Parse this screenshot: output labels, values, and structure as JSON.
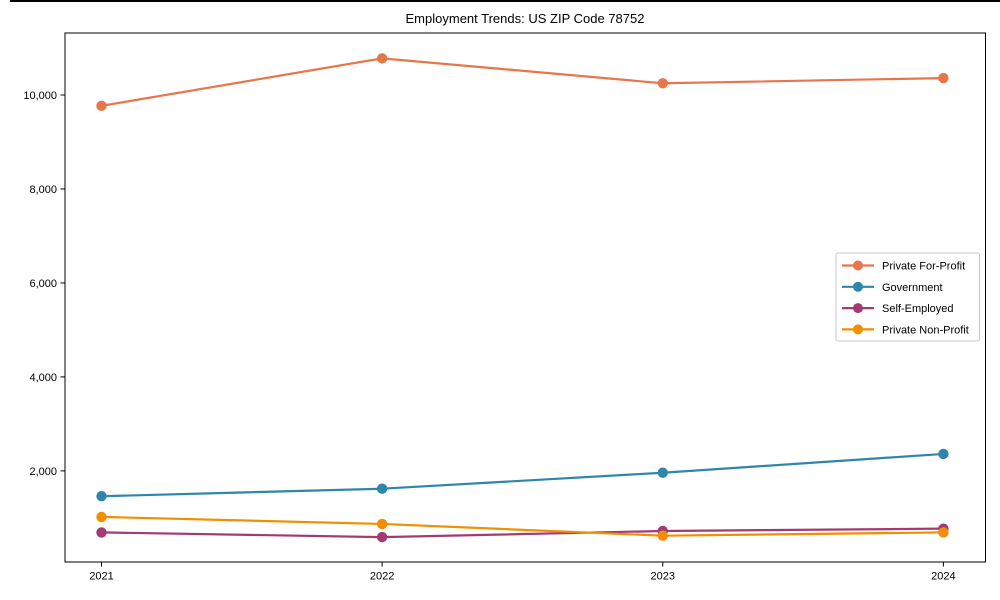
{
  "chart_data": {
    "type": "line",
    "title": "Employment Trends: US ZIP Code 78752",
    "x": [
      2021,
      2022,
      2023,
      2024
    ],
    "x_tick_labels": [
      "2021",
      "2022",
      "2023",
      "2024"
    ],
    "y_ticks": [
      2000,
      4000,
      6000,
      8000,
      10000
    ],
    "y_tick_labels": [
      "2,000",
      "4,000",
      "6,000",
      "8,000",
      "10,000"
    ],
    "xlim": [
      2020.87,
      2024.15
    ],
    "ylim": [
      60,
      11320
    ],
    "grid": false,
    "legend_position": "center-right",
    "series": [
      {
        "name": "Private For-Profit",
        "color": "#E8764B",
        "values": [
          9770,
          10780,
          10250,
          10360
        ]
      },
      {
        "name": "Government",
        "color": "#2E86AB",
        "values": [
          1460,
          1620,
          1960,
          2360
        ]
      },
      {
        "name": "Self-Employed",
        "color": "#A23B72",
        "values": [
          690,
          590,
          720,
          770
        ]
      },
      {
        "name": "Private Non-Profit",
        "color": "#F18F01",
        "values": [
          1020,
          870,
          620,
          690
        ]
      }
    ]
  }
}
